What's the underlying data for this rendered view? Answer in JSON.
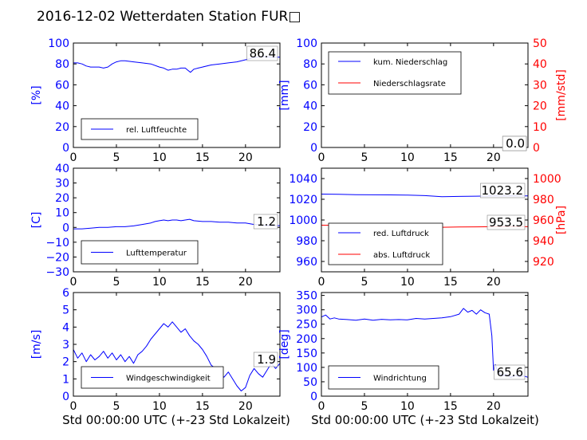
{
  "title": "2016-12-02 Wetterdaten Station FUR□",
  "xlabel": "Std 00:00:00 UTC (+-23 Std Lokalzeit)",
  "colors": {
    "blue": "#0000ff",
    "red": "#ff0000",
    "black": "#000000"
  },
  "chart_data": [
    {
      "type": "line",
      "ylabel": "[%]",
      "xlim": [
        0,
        24
      ],
      "ylim": [
        0,
        100
      ],
      "xticks": [
        "0",
        "5",
        "10",
        "15",
        "20"
      ],
      "yticks": [
        "0",
        "20",
        "40",
        "60",
        "80",
        "100"
      ],
      "legend": {
        "placement": "lower-left",
        "entries": [
          "rel. Luftfeuchte"
        ]
      },
      "series": [
        {
          "name": "rel. Luftfeuchte",
          "color": "#0000ff",
          "x": [
            0,
            0.5,
            1,
            1.5,
            2,
            3,
            3.5,
            4,
            4.5,
            5,
            5.5,
            6,
            7,
            8,
            9,
            10,
            10.5,
            11,
            11.5,
            12,
            12.5,
            13,
            13.3,
            13.6,
            14,
            14.5,
            15,
            16,
            17,
            18,
            19,
            20,
            21,
            22,
            23,
            24
          ],
          "y": [
            81,
            81,
            80,
            78,
            77,
            77,
            76,
            77,
            80,
            82,
            83,
            83,
            82,
            81,
            80,
            77,
            76,
            74,
            75,
            75,
            76,
            76,
            74,
            72,
            75,
            76,
            77,
            79,
            80,
            81,
            82,
            84,
            86,
            87,
            86.5,
            86.4
          ]
        }
      ],
      "readout": "86.4"
    },
    {
      "type": "line",
      "ylabel": "[mm]",
      "ylabel_right": "[mm/std]",
      "xlim": [
        0,
        24
      ],
      "ylim": [
        0,
        100
      ],
      "ylim_right": [
        0,
        50
      ],
      "xticks": [
        "0",
        "5",
        "10",
        "15",
        "20"
      ],
      "yticks": [
        "0",
        "20",
        "40",
        "60",
        "80",
        "100"
      ],
      "yticks_right": [
        "0",
        "10",
        "20",
        "30",
        "40",
        "50"
      ],
      "legend": {
        "placement": "upper-left",
        "entries": [
          "kum. Niederschlag",
          "Niederschlagsrate"
        ]
      },
      "series": [
        {
          "name": "kum. Niederschlag",
          "color": "#0000ff",
          "axis": "left",
          "x": [
            0,
            24
          ],
          "y": [
            0,
            0
          ]
        },
        {
          "name": "Niederschlagsrate",
          "color": "#ff0000",
          "axis": "right",
          "x": [
            0,
            24
          ],
          "y": [
            0,
            0
          ]
        }
      ],
      "readouts": [
        "0.0",
        "0.0"
      ]
    },
    {
      "type": "line",
      "ylabel": "[C]",
      "xlim": [
        0,
        24
      ],
      "ylim": [
        -30,
        40
      ],
      "xticks": [
        "0",
        "5",
        "10",
        "15",
        "20"
      ],
      "yticks": [
        "−30",
        "−20",
        "−10",
        "0",
        "10",
        "20",
        "30",
        "40"
      ],
      "legend": {
        "placement": "lower-left",
        "entries": [
          "Lufttemperatur"
        ]
      },
      "series": [
        {
          "name": "Lufttemperatur",
          "color": "#0000ff",
          "x": [
            0,
            1,
            2,
            3,
            4,
            5,
            6,
            7,
            8,
            9,
            9.5,
            10,
            10.5,
            11,
            11.5,
            12,
            12.5,
            13,
            13.5,
            14,
            15,
            16,
            17,
            18,
            19,
            20,
            21,
            22,
            23,
            24
          ],
          "y": [
            -1,
            -1,
            -0.5,
            0,
            0,
            0.5,
            0.5,
            1,
            2,
            3,
            4,
            4.5,
            5,
            4.5,
            5,
            5,
            4.5,
            5,
            5.5,
            4.5,
            4,
            4,
            3.5,
            3.5,
            3,
            3,
            2,
            1.5,
            1.2,
            1.2
          ]
        }
      ],
      "readout": "1.2"
    },
    {
      "type": "line",
      "ylabel_right": "[hPa]",
      "xlim": [
        0,
        24
      ],
      "ylim": [
        950,
        1050
      ],
      "ylim_right": [
        910,
        1010
      ],
      "xticks": [
        "0",
        "5",
        "10",
        "15",
        "20"
      ],
      "yticks": [
        "960",
        "980",
        "1000",
        "1020",
        "1040"
      ],
      "yticks_right": [
        "920",
        "940",
        "960",
        "980",
        "1000"
      ],
      "legend": {
        "placement": "lower-left",
        "entries": [
          "red. Luftdruck",
          "abs. Luftdruck"
        ]
      },
      "series": [
        {
          "name": "red. Luftdruck",
          "color": "#0000ff",
          "axis": "left",
          "x": [
            0,
            2,
            4,
            6,
            8,
            10,
            12,
            14,
            16,
            18,
            20,
            22,
            24
          ],
          "y": [
            1025,
            1024.8,
            1024.5,
            1024.3,
            1024.2,
            1024,
            1023.5,
            1022.5,
            1022.8,
            1023,
            1023.2,
            1023.3,
            1023.2
          ]
        },
        {
          "name": "abs. Luftdruck",
          "color": "#ff0000",
          "axis": "right",
          "x": [
            0,
            2,
            4,
            6,
            8,
            10,
            12,
            14,
            16,
            18,
            20,
            22,
            24
          ],
          "y": [
            955,
            954.8,
            954.5,
            954.3,
            954.2,
            954,
            953.7,
            953,
            953.2,
            953.4,
            953.5,
            953.6,
            953.5
          ]
        }
      ],
      "readouts": [
        "1023.2",
        "953.5"
      ]
    },
    {
      "type": "line",
      "ylabel": "[m/s]",
      "xlim": [
        0,
        24
      ],
      "ylim": [
        0,
        6
      ],
      "xticks": [
        "0",
        "5",
        "10",
        "15",
        "20"
      ],
      "yticks": [
        "0",
        "1",
        "2",
        "3",
        "4",
        "5",
        "6"
      ],
      "legend": {
        "placement": "lower-center",
        "entries": [
          "Windgeschwindigkeit"
        ]
      },
      "series": [
        {
          "name": "Windgeschwindigkeit",
          "color": "#0000ff",
          "x": [
            0,
            0.5,
            1,
            1.5,
            2,
            2.5,
            3,
            3.5,
            4,
            4.5,
            5,
            5.5,
            6,
            6.5,
            7,
            7.5,
            8,
            8.5,
            9,
            9.5,
            10,
            10.5,
            11,
            11.5,
            12,
            12.5,
            13,
            13.5,
            14,
            14.5,
            15,
            15.5,
            16,
            16.5,
            17,
            17.5,
            18,
            18.5,
            19,
            19.5,
            20,
            20.5,
            21,
            21.5,
            22,
            22.5,
            23,
            23.5,
            24
          ],
          "y": [
            2.7,
            2.2,
            2.5,
            2.0,
            2.4,
            2.1,
            2.3,
            2.6,
            2.2,
            2.5,
            2.1,
            2.4,
            2.0,
            2.3,
            1.9,
            2.4,
            2.6,
            2.9,
            3.3,
            3.6,
            3.9,
            4.2,
            4.0,
            4.3,
            4.0,
            3.7,
            3.9,
            3.5,
            3.2,
            3.0,
            2.7,
            2.3,
            1.8,
            1.6,
            1.3,
            1.1,
            1.4,
            1.0,
            0.6,
            0.3,
            0.5,
            1.2,
            1.6,
            1.3,
            1.1,
            1.5,
            1.9,
            1.6,
            1.9
          ]
        }
      ],
      "readout": "1.9"
    },
    {
      "type": "line",
      "ylabel": "[deg]",
      "xlim": [
        0,
        24
      ],
      "ylim": [
        0,
        360
      ],
      "xticks": [
        "0",
        "5",
        "10",
        "15",
        "20"
      ],
      "yticks": [
        "0",
        "50",
        "100",
        "150",
        "200",
        "250",
        "300",
        "350"
      ],
      "legend": {
        "placement": "lower-left",
        "entries": [
          "Windrichtung"
        ]
      },
      "series": [
        {
          "name": "Windrichtung",
          "color": "#0000ff",
          "x": [
            0,
            0.5,
            1,
            1.5,
            2,
            3,
            4,
            5,
            6,
            7,
            8,
            9,
            10,
            11,
            12,
            13,
            14,
            15,
            16,
            16.5,
            17,
            17.5,
            18,
            18.5,
            19,
            19.5,
            19.8,
            20,
            20.2,
            20.5,
            21,
            21.5,
            22,
            22.5,
            23,
            23.5,
            24
          ],
          "y": [
            275,
            282,
            268,
            272,
            268,
            266,
            264,
            268,
            264,
            267,
            265,
            266,
            265,
            270,
            268,
            270,
            272,
            276,
            285,
            305,
            292,
            298,
            285,
            300,
            290,
            285,
            210,
            90,
            110,
            85,
            70,
            75,
            65,
            72,
            68,
            70,
            65.6
          ]
        }
      ],
      "readout": "65.6"
    }
  ]
}
